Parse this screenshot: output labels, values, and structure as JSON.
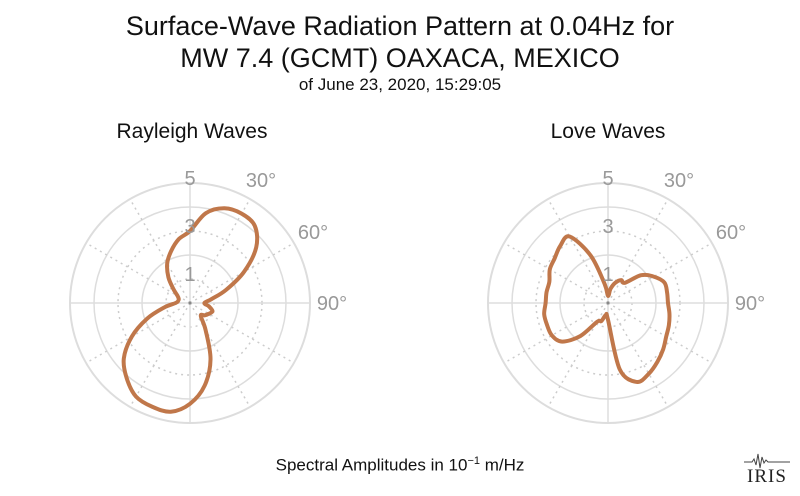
{
  "title": {
    "line1": "Surface-Wave Radiation Pattern at 0.04Hz for",
    "line2": "MW 7.4 (GCMT) OAXACA, MEXICO",
    "subtitle": "of June 23, 2020, 15:29:05"
  },
  "footer": {
    "label_prefix": "Spectral Amplitudes in 10",
    "label_exponent": "−1",
    "label_suffix": " m/Hz"
  },
  "logo": {
    "text": "IRIS"
  },
  "colors": {
    "pattern": "#c0774a",
    "grid_solid": "#dddddd",
    "grid_dotted": "#cccccc",
    "tick_label": "#999999"
  },
  "chart_data": [
    {
      "type": "polar",
      "title": "Rayleigh Waves",
      "r_max": 5,
      "r_ticks": [
        1,
        3,
        5
      ],
      "r_tick_labels": [
        "1",
        "3",
        "5"
      ],
      "angle_ticks": [
        30,
        60,
        90
      ],
      "angle_tick_labels": [
        "30°",
        "60°",
        "90°"
      ],
      "azimuth_deg": [
        0,
        10,
        20,
        30,
        40,
        50,
        60,
        70,
        80,
        90,
        100,
        110,
        120,
        130,
        140,
        150,
        160,
        170,
        180,
        190,
        200,
        210,
        220,
        230,
        240,
        250,
        260,
        270,
        280,
        290,
        300,
        310,
        320,
        330,
        340,
        350
      ],
      "amplitude": [
        3.0,
        3.8,
        4.2,
        4.3,
        4.2,
        3.6,
        2.6,
        1.6,
        0.9,
        0.6,
        0.8,
        1.0,
        0.9,
        0.8,
        0.7,
        1.3,
        2.5,
        3.5,
        4.2,
        4.6,
        4.6,
        4.5,
        4.1,
        3.6,
        2.8,
        1.9,
        1.1,
        0.6,
        0.5,
        0.5,
        0.6,
        0.9,
        1.4,
        1.9,
        2.3,
        2.7
      ]
    },
    {
      "type": "polar",
      "title": "Love Waves",
      "r_max": 5,
      "r_ticks": [
        1,
        3,
        5
      ],
      "r_tick_labels": [
        "1",
        "3",
        "5"
      ],
      "angle_ticks": [
        30,
        60,
        90
      ],
      "angle_tick_labels": [
        "30°",
        "60°",
        "90°"
      ],
      "azimuth_deg": [
        0,
        10,
        20,
        30,
        40,
        50,
        60,
        70,
        80,
        90,
        100,
        110,
        120,
        130,
        140,
        150,
        160,
        170,
        180,
        190,
        200,
        210,
        220,
        230,
        240,
        250,
        260,
        270,
        280,
        290,
        300,
        310,
        320,
        330,
        340,
        350
      ],
      "amplitude": [
        0.3,
        0.6,
        0.9,
        1.1,
        1.1,
        1.8,
        2.2,
        2.5,
        2.5,
        2.5,
        2.6,
        2.7,
        2.8,
        3.0,
        3.2,
        3.4,
        3.5,
        2.8,
        0.7,
        0.5,
        0.8,
        0.9,
        1.8,
        2.5,
        2.7,
        2.7,
        2.7,
        2.6,
        2.6,
        2.6,
        2.8,
        2.9,
        3.1,
        3.2,
        2.1,
        0.8
      ]
    }
  ]
}
